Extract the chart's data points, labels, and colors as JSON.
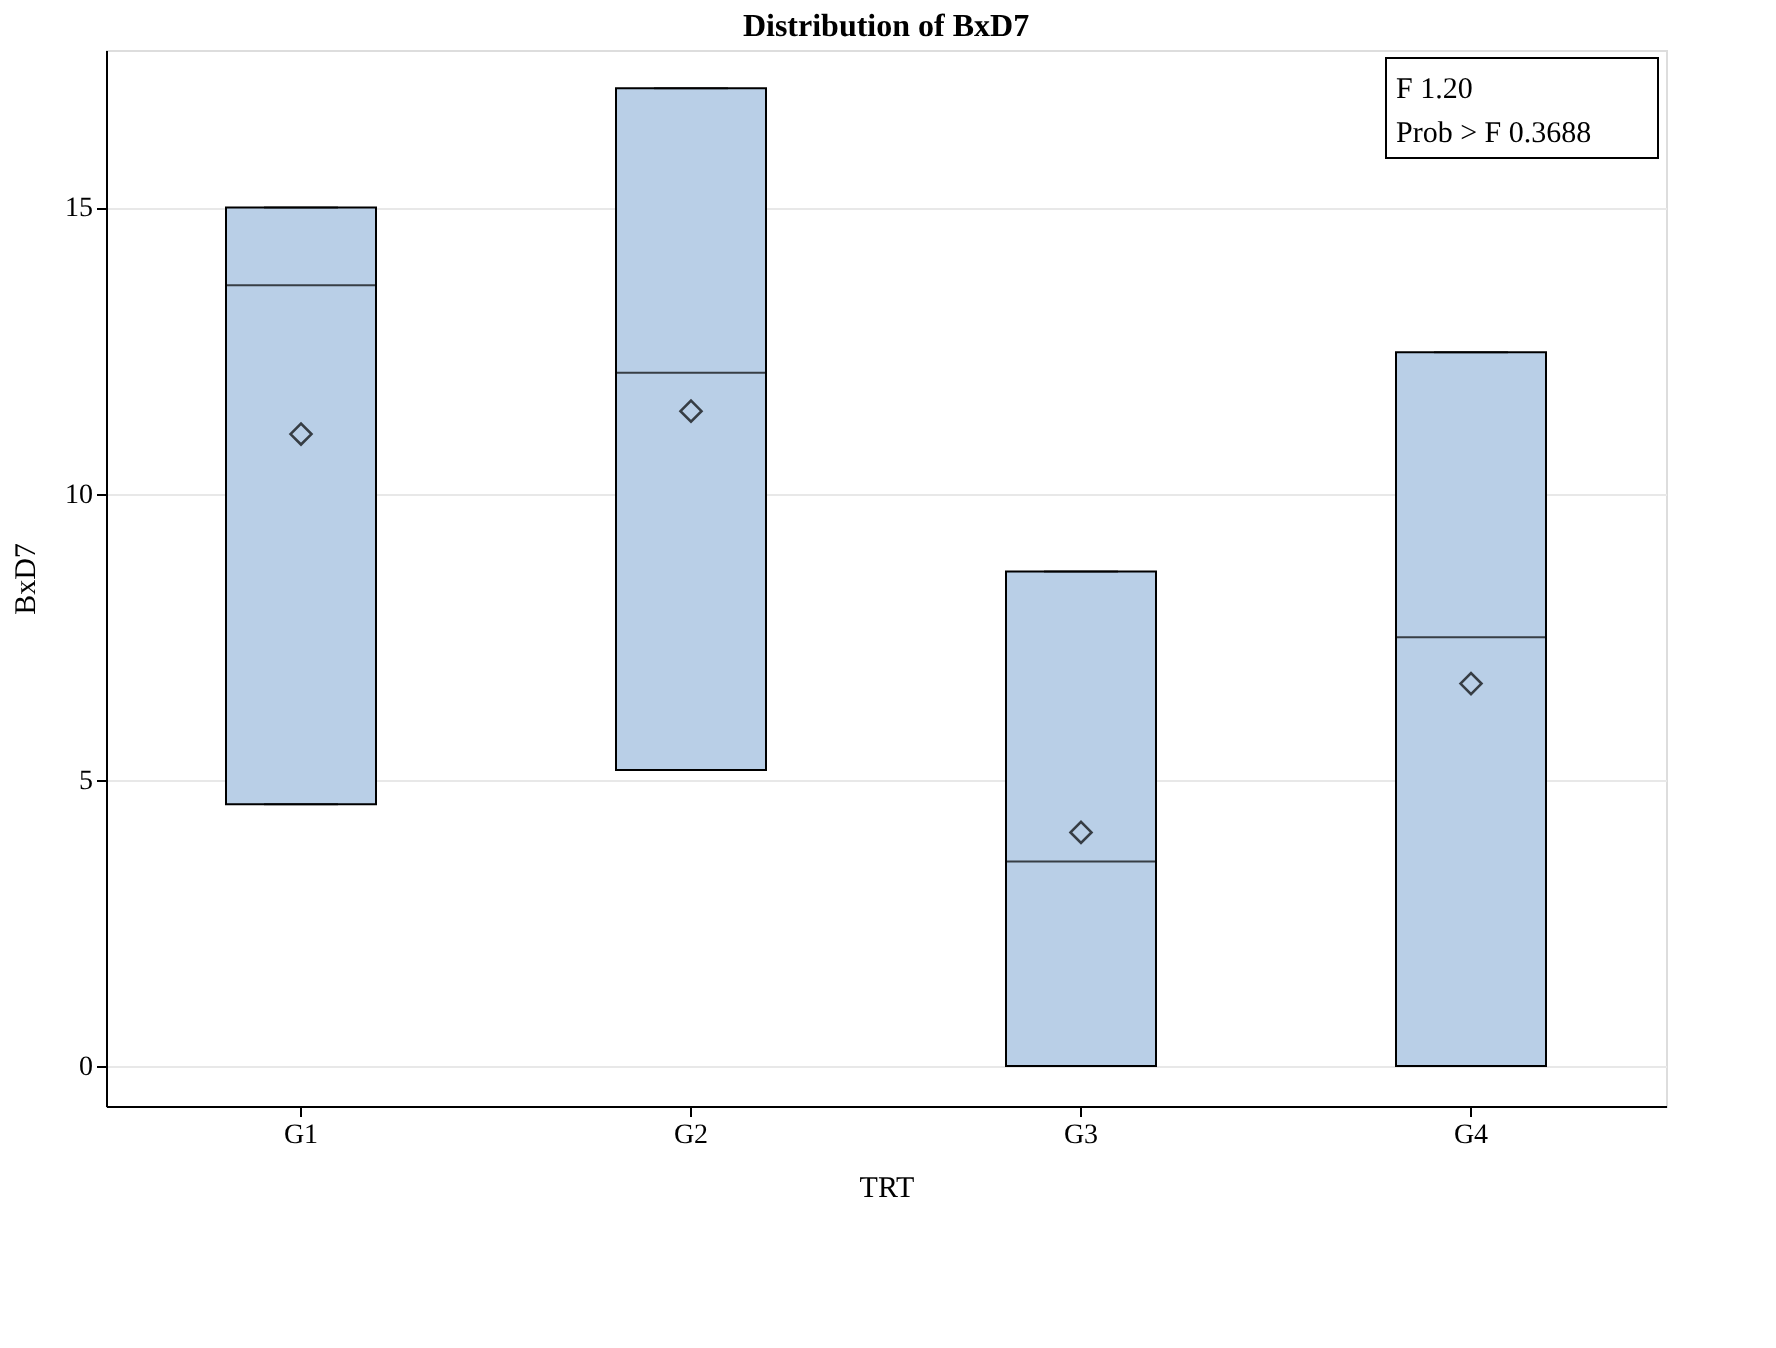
{
  "chart_data": {
    "type": "box",
    "title": "Distribution of BxD7",
    "xlabel": "TRT",
    "ylabel": "BxD7",
    "categories": [
      "G1",
      "G2",
      "G3",
      "G4"
    ],
    "color": "#b9cfe7",
    "marker": "diamond",
    "grid": "y",
    "ylim": [
      -0.7,
      17.75
    ],
    "yticks": [
      0,
      5,
      10,
      15
    ],
    "boxes": [
      {
        "low": 4.57,
        "q1": 4.57,
        "median": 13.64,
        "q3": 15.0,
        "high": 15.0,
        "mean": 11.04
      },
      {
        "low": 5.17,
        "q1": 5.17,
        "median": 12.11,
        "q3": 17.08,
        "high": 17.08,
        "mean": 11.44
      },
      {
        "low": 0.0,
        "q1": 0.0,
        "median": 3.57,
        "q3": 8.64,
        "high": 8.64,
        "mean": 4.08
      },
      {
        "low": 0.0,
        "q1": 0.0,
        "median": 7.49,
        "q3": 12.47,
        "high": 12.47,
        "mean": 6.68
      }
    ],
    "annotations": [
      "F 1.20",
      "Prob > F 0.3688"
    ]
  }
}
